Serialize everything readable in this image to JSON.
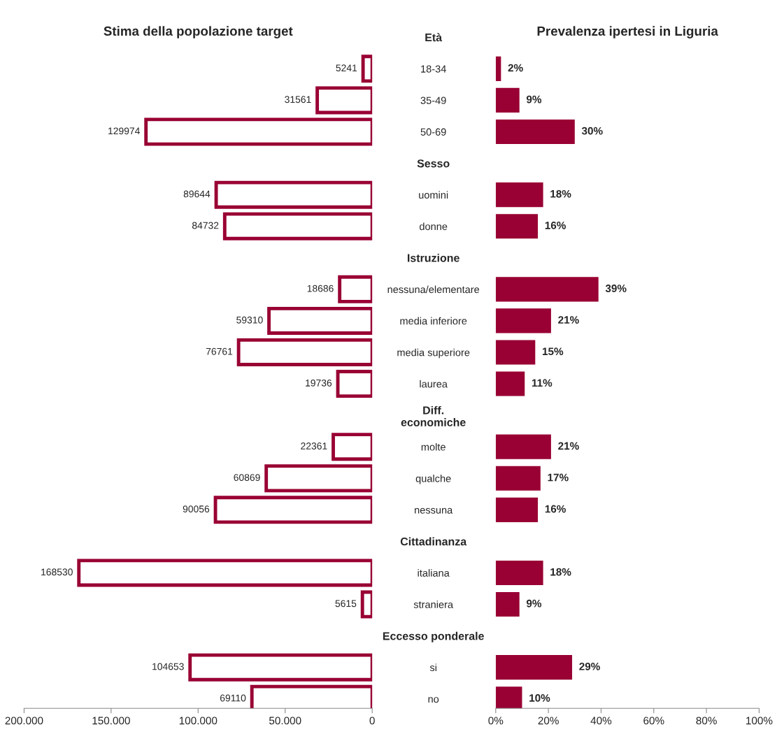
{
  "chart_data": [
    {
      "type": "bar",
      "orientation": "horizontal",
      "title": "Stima della popolazione target",
      "categories": [
        "Età",
        "18-34",
        "35-49",
        "50-69",
        "Sesso",
        "uomini",
        "donne",
        "Istruzione",
        "nessuna/elementare",
        "media inferiore",
        "media superiore",
        "laurea",
        "Diff.\neconomiche",
        "molte",
        "qualche",
        "nessuna",
        "Cittadinanza",
        "italiana",
        "straniera",
        "Eccesso ponderale",
        "si",
        "no"
      ],
      "values": [
        null,
        5241,
        31561,
        129974,
        null,
        89644,
        84732,
        null,
        18686,
        59310,
        76761,
        19736,
        null,
        22361,
        60869,
        90056,
        null,
        168530,
        5615,
        null,
        104653,
        69110
      ],
      "color": "#990033",
      "data_labels": true,
      "xlim": [
        200000,
        0
      ],
      "xticks": [
        {
          "value": 200000,
          "label": "200.000"
        },
        {
          "value": 150000,
          "label": "150.000"
        },
        {
          "value": 100000,
          "label": "100.000"
        },
        {
          "value": 50000,
          "label": "50.000"
        },
        0
      ]
    },
    {
      "type": "bar",
      "orientation": "horizontal",
      "title": "Prevalenza ipertesi in Liguria",
      "tick_labels": "x",
      "categories": [
        null,
        null,
        null,
        null,
        null,
        null,
        null,
        null,
        null,
        null,
        null,
        null,
        null,
        null,
        null,
        null,
        null,
        null,
        null,
        null,
        null,
        null
      ],
      "values": [
        null,
        2,
        9,
        30,
        null,
        18,
        16,
        null,
        39,
        21,
        15,
        11,
        null,
        21,
        17,
        16,
        null,
        18,
        9,
        null,
        29,
        10
      ],
      "value_labels": [
        null,
        "2%",
        "9%",
        "30%",
        null,
        "18%",
        "16%",
        null,
        "39%",
        "21%",
        "15%",
        "11%",
        null,
        "21%",
        "17%",
        "16%",
        null,
        "18%",
        "9%",
        null,
        "29%",
        "10%"
      ],
      "color": "#990033",
      "xlim": [
        0,
        100
      ],
      "xticks": [
        {
          "value": 0,
          "label": "0%"
        },
        {
          "value": 20,
          "label": "20%"
        },
        {
          "value": 40,
          "label": "40%"
        },
        {
          "value": 60,
          "label": "60%"
        },
        {
          "value": 80,
          "label": "80%"
        },
        {
          "value": 100,
          "label": "100%"
        }
      ]
    }
  ]
}
